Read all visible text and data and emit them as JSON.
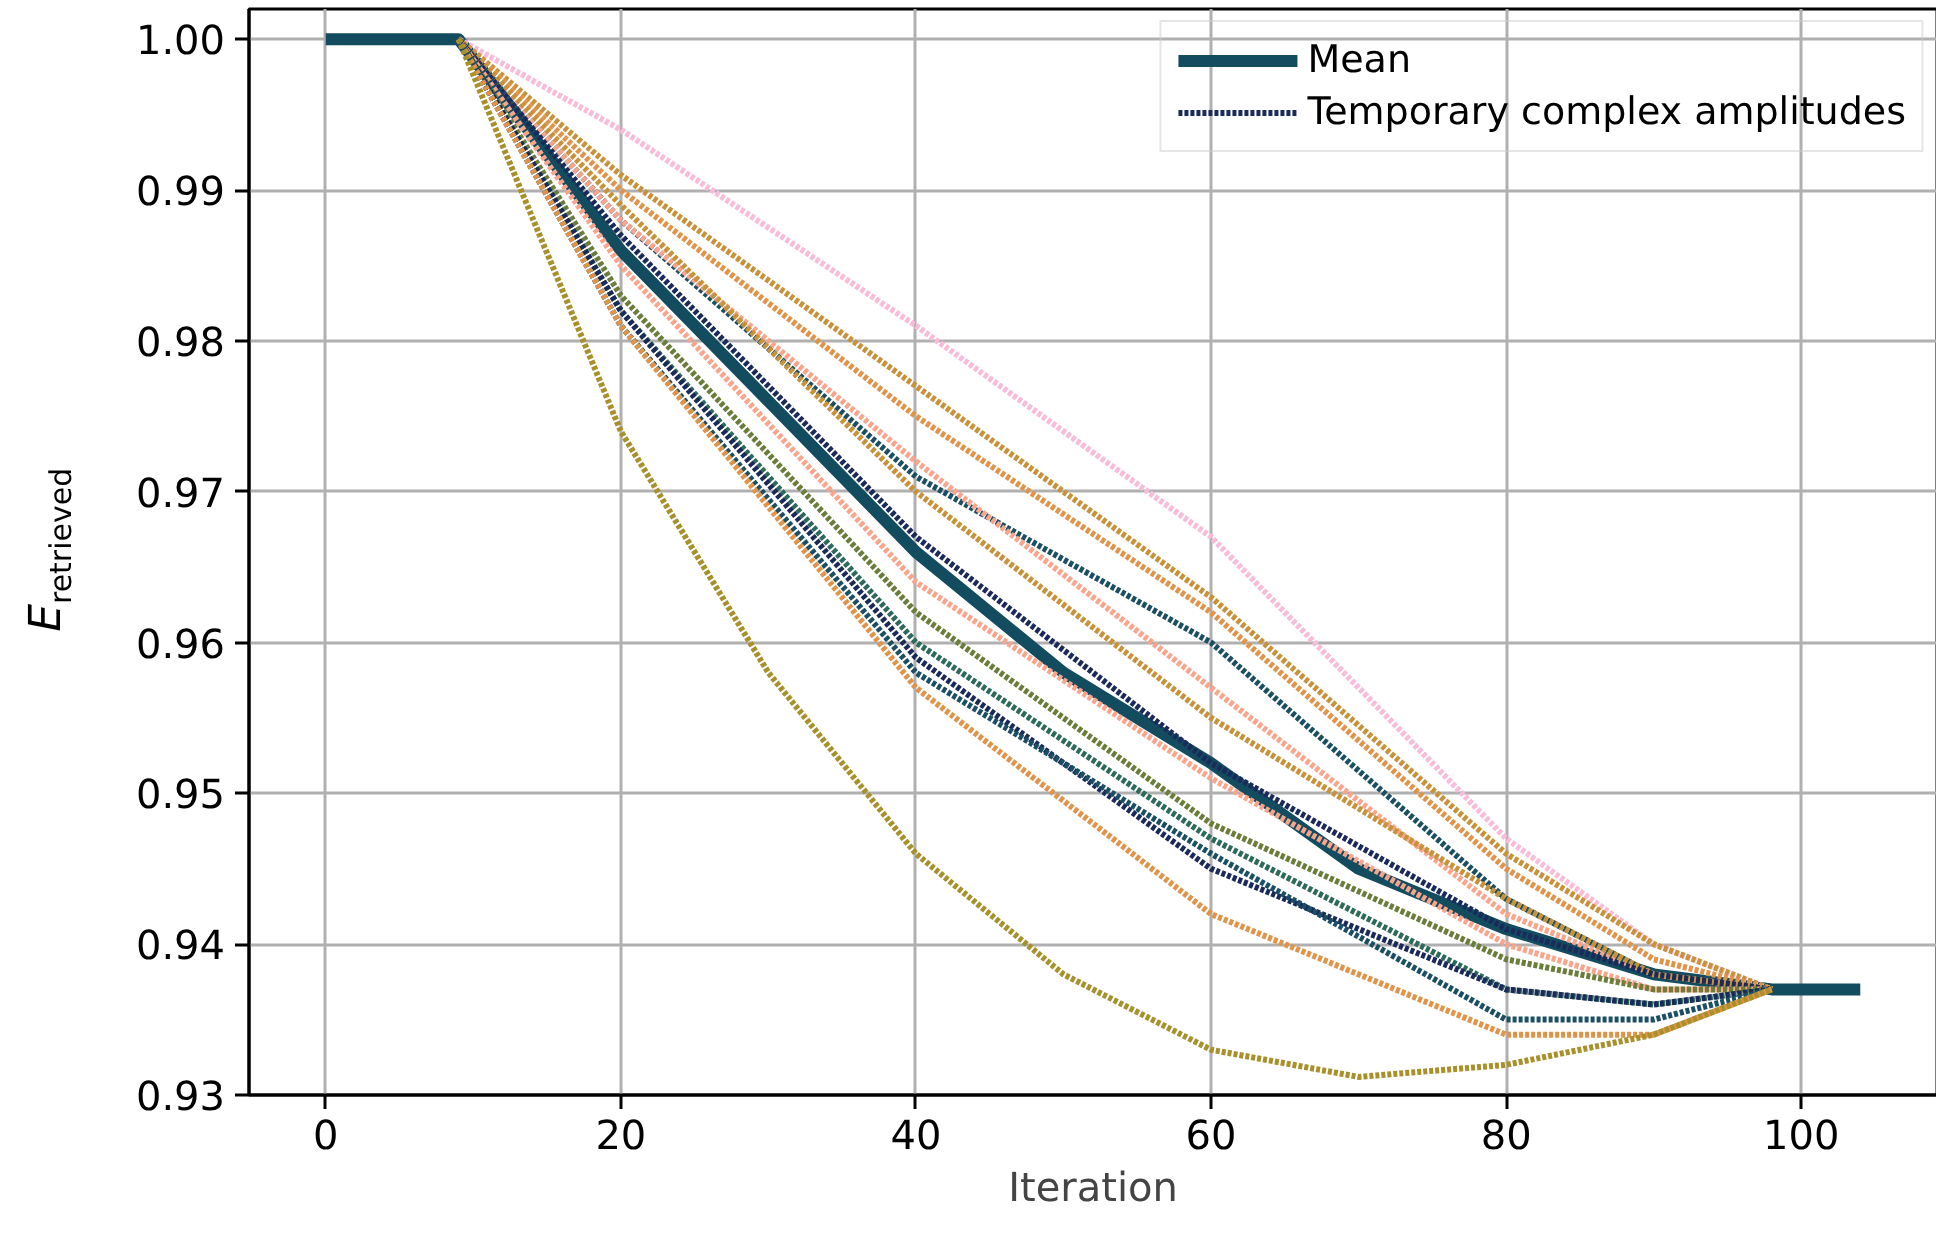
{
  "chart_data": {
    "type": "line",
    "xlabel": "Iteration",
    "ylabel": "E$_{retrieved}$",
    "xlim": [
      -5.2,
      109.2
    ],
    "ylim": [
      0.93,
      1.002
    ],
    "xticks": [
      0,
      20,
      40,
      60,
      80,
      100
    ],
    "yticks": [
      {
        "value": 0.93,
        "label": "0.93"
      },
      {
        "value": 0.94,
        "label": "0.94"
      },
      {
        "value": 0.95,
        "label": "0.95"
      },
      {
        "value": 0.96,
        "label": "0.96"
      },
      {
        "value": 0.97,
        "label": "0.97"
      },
      {
        "value": 0.98,
        "label": "0.98"
      },
      {
        "value": 0.99,
        "label": "0.99"
      },
      {
        "value": 1.0,
        "label": "1.00"
      }
    ],
    "grid": true,
    "legend": "top right",
    "marker": "none",
    "series": [
      {
        "color": "#f9bcd8",
        "line_style": "dotted",
        "x": [
          9,
          20,
          40,
          60,
          80,
          90,
          98
        ],
        "values": [
          1.0,
          0.994,
          0.981,
          0.967,
          0.947,
          0.94,
          0.937
        ]
      },
      {
        "color": "#c8923a",
        "line_style": "dotted",
        "x": [
          9,
          20,
          40,
          60,
          80,
          90,
          98
        ],
        "values": [
          1.0,
          0.991,
          0.977,
          0.963,
          0.946,
          0.94,
          0.937
        ]
      },
      {
        "color": "#e0944a",
        "line_style": "dotted",
        "x": [
          9,
          20,
          40,
          60,
          80,
          90,
          98
        ],
        "values": [
          1.0,
          0.99,
          0.975,
          0.962,
          0.945,
          0.939,
          0.937
        ]
      },
      {
        "color": "#1b4f63",
        "line_style": "dotted",
        "x": [
          9,
          20,
          40,
          60,
          80,
          90,
          98
        ],
        "values": [
          1.0,
          0.988,
          0.971,
          0.96,
          0.943,
          0.938,
          0.937
        ]
      },
      {
        "color": "#f9a58c",
        "line_style": "dotted",
        "x": [
          9,
          20,
          40,
          60,
          80,
          90,
          98
        ],
        "values": [
          1.0,
          0.988,
          0.972,
          0.957,
          0.942,
          0.938,
          0.937
        ]
      },
      {
        "color": "#c8923a",
        "line_style": "dotted",
        "x": [
          9,
          20,
          40,
          60,
          80,
          90,
          98
        ],
        "values": [
          1.0,
          0.989,
          0.97,
          0.955,
          0.943,
          0.938,
          0.937
        ]
      },
      {
        "name": "Temporary complex amplitudes",
        "color": "#1a2a5a",
        "line_style": "dotted",
        "x": [
          9,
          20,
          40,
          60,
          80,
          90,
          98
        ],
        "values": [
          1.0,
          0.987,
          0.967,
          0.952,
          0.941,
          0.938,
          0.937
        ]
      },
      {
        "color": "#f9a58c",
        "line_style": "dotted",
        "x": [
          9,
          20,
          40,
          60,
          80,
          90,
          98
        ],
        "values": [
          1.0,
          0.985,
          0.964,
          0.951,
          0.94,
          0.937,
          0.937
        ]
      },
      {
        "color": "#6b7d3a",
        "line_style": "dotted",
        "x": [
          9,
          20,
          40,
          60,
          80,
          90,
          98
        ],
        "values": [
          1.0,
          0.983,
          0.962,
          0.948,
          0.939,
          0.937,
          0.937
        ]
      },
      {
        "color": "#2e6a5a",
        "line_style": "dotted",
        "x": [
          9,
          20,
          40,
          60,
          80,
          90,
          98
        ],
        "values": [
          1.0,
          0.982,
          0.96,
          0.947,
          0.937,
          0.936,
          0.937
        ]
      },
      {
        "color": "#1a2a5a",
        "line_style": "dotted",
        "x": [
          9,
          20,
          40,
          60,
          80,
          90,
          98
        ],
        "values": [
          1.0,
          0.982,
          0.959,
          0.945,
          0.937,
          0.936,
          0.937
        ]
      },
      {
        "color": "#1b4f63",
        "line_style": "dotted",
        "x": [
          9,
          20,
          40,
          60,
          80,
          90,
          98
        ],
        "values": [
          1.0,
          0.981,
          0.958,
          0.946,
          0.935,
          0.935,
          0.937
        ]
      },
      {
        "color": "#e0944a",
        "line_style": "dotted",
        "x": [
          9,
          20,
          40,
          60,
          80,
          90,
          98
        ],
        "values": [
          1.0,
          0.981,
          0.957,
          0.942,
          0.934,
          0.934,
          0.937
        ]
      },
      {
        "color": "#a8902a",
        "line_style": "dotted",
        "x": [
          9,
          20,
          30,
          40,
          50,
          60,
          70,
          80,
          90,
          98
        ],
        "values": [
          1.0,
          0.974,
          0.958,
          0.946,
          0.938,
          0.933,
          0.9312,
          0.932,
          0.934,
          0.937
        ]
      },
      {
        "name": "Mean",
        "color": "#134b5f",
        "line_style": "solid",
        "x": [
          0,
          9,
          20,
          30,
          40,
          50,
          60,
          70,
          80,
          90,
          98,
          104
        ],
        "values": [
          1.0,
          1.0,
          0.986,
          0.976,
          0.966,
          0.958,
          0.952,
          0.945,
          0.941,
          0.938,
          0.937,
          0.937
        ]
      }
    ]
  }
}
